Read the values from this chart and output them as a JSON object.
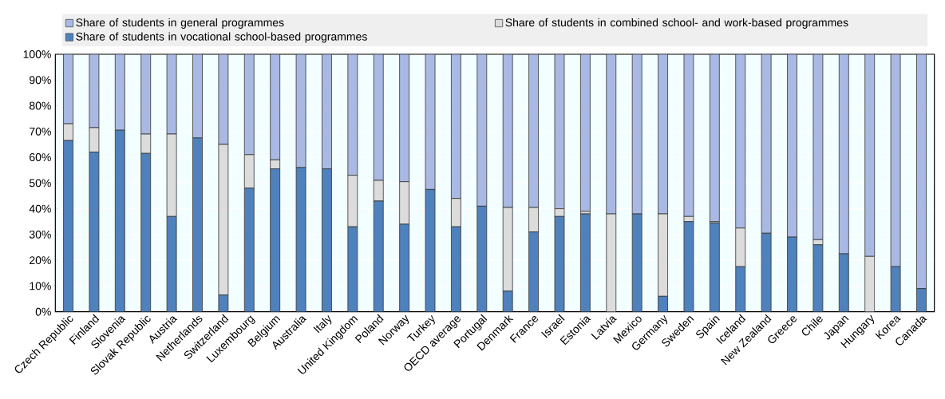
{
  "chart_data": {
    "type": "bar",
    "stacked": true,
    "categories": [
      "Czech Republic",
      "Finland",
      "Slovenia",
      "Slovak Republic",
      "Austria",
      "Netherlands",
      "Switzerland",
      "Luxembourg",
      "Belgium",
      "Australia",
      "Italy",
      "United Kingdom",
      "Poland",
      "Norway",
      "Turkey",
      "OECD average",
      "Portugal",
      "Denmark",
      "France",
      "Israel",
      "Estonia",
      "Latvia",
      "Mexico",
      "Germany",
      "Sweden",
      "Spain",
      "Iceland",
      "New Zealand",
      "Greece",
      "Chile",
      "Japan",
      "Hungary",
      "Korea",
      "Canada"
    ],
    "series": [
      {
        "name": "Share of students in vocational school-based programmes",
        "color": "#4f81bd",
        "values": [
          66.5,
          62,
          70.5,
          61.5,
          37,
          67.5,
          6.5,
          48,
          55.5,
          56,
          55.5,
          33,
          43,
          34,
          47.5,
          33,
          41,
          8,
          31,
          37,
          38,
          0,
          38,
          6,
          35,
          34.5,
          17.5,
          30.5,
          29,
          26,
          22.5,
          0,
          17.5,
          9
        ]
      },
      {
        "name": "Share of students in combined school- and work-based programmes",
        "color": "#dcdcdc",
        "values": [
          6.5,
          9.5,
          0,
          7.5,
          32,
          0,
          58.5,
          13,
          3.5,
          0,
          0,
          20,
          8,
          16.5,
          0,
          11,
          0,
          32.5,
          9.5,
          3,
          1,
          38,
          0,
          32,
          2,
          0.5,
          15,
          0,
          0,
          2,
          0,
          21.5,
          0,
          0
        ]
      },
      {
        "name": "Share of students in general programmes",
        "color": "#a9b9e3",
        "values": [
          27,
          28.5,
          29.5,
          31,
          31,
          32.5,
          35,
          39,
          41,
          44,
          44.5,
          47,
          49,
          49.5,
          52.5,
          56,
          59,
          59.5,
          59.5,
          60,
          61,
          62,
          62,
          62,
          63,
          65,
          67.5,
          69.5,
          71,
          72,
          77.5,
          78.5,
          82.5,
          91
        ]
      }
    ],
    "ylim": [
      0,
      100
    ],
    "yticks": [
      {
        "value": 0,
        "label": "0%"
      },
      {
        "value": 10,
        "label": "10%"
      },
      {
        "value": 20,
        "label": "20%"
      },
      {
        "value": 30,
        "label": "30%"
      },
      {
        "value": 40,
        "label": "40%"
      },
      {
        "value": 50,
        "label": "50%"
      },
      {
        "value": 60,
        "label": "60%"
      },
      {
        "value": 70,
        "label": "70%"
      },
      {
        "value": 80,
        "label": "80%"
      },
      {
        "value": 90,
        "label": "90%"
      },
      {
        "value": 100,
        "label": "100%"
      }
    ],
    "grid": "y",
    "legend": "top"
  }
}
